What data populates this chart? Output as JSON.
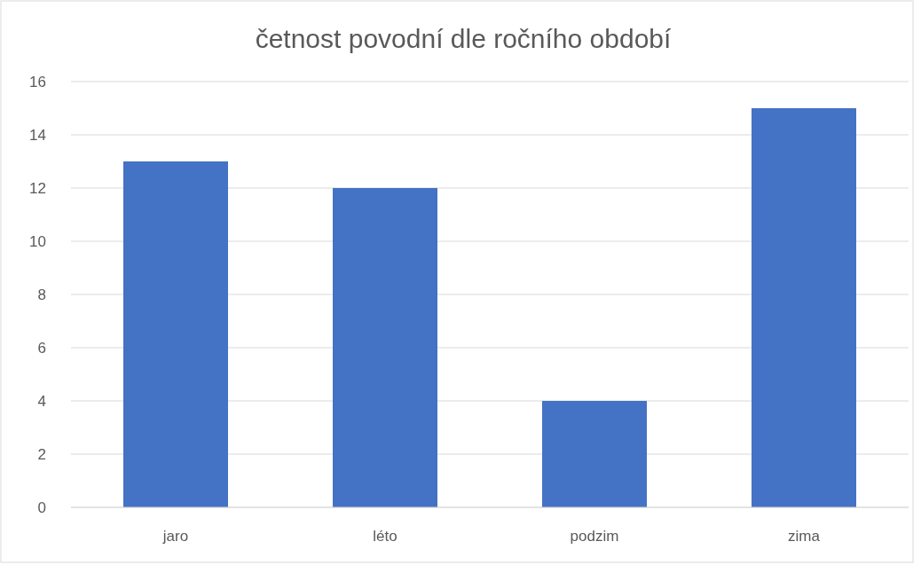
{
  "chart_data": {
    "type": "bar",
    "title": "četnost povodní dle ročního období",
    "categories": [
      "jaro",
      "léto",
      "podzim",
      "zima"
    ],
    "values": [
      13,
      12,
      4,
      15
    ],
    "color": "#4472c4",
    "ylim": [
      0,
      16
    ],
    "yticks": [
      0,
      2,
      4,
      6,
      8,
      10,
      12,
      14,
      16
    ],
    "grid": "y"
  }
}
